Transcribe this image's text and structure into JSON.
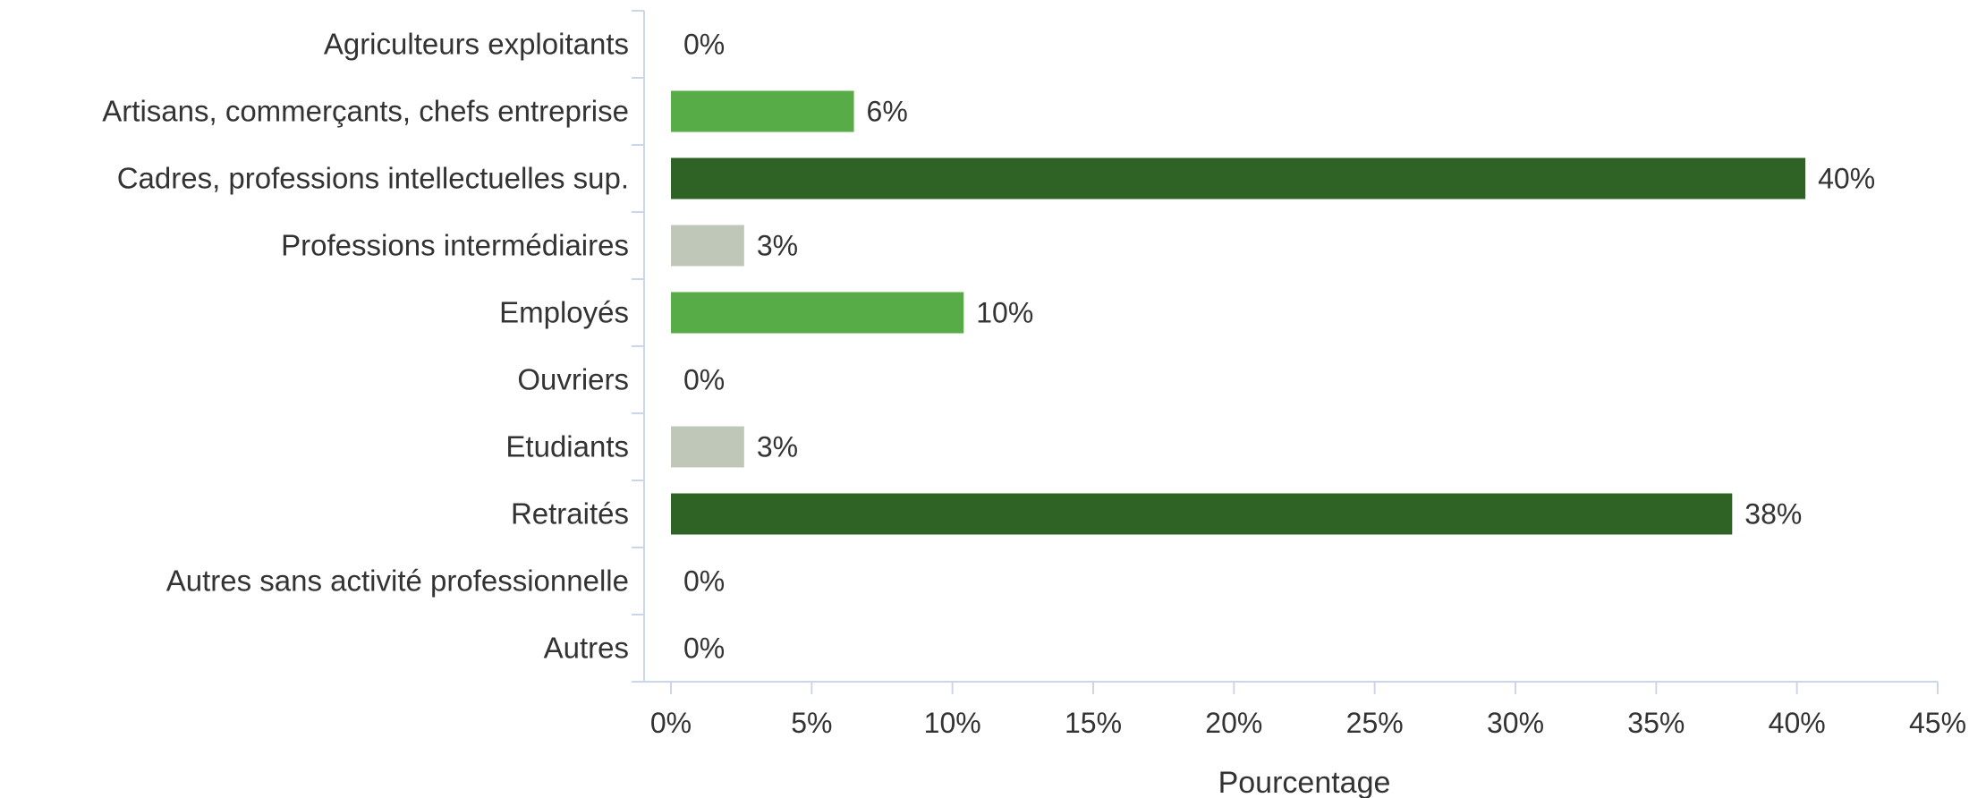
{
  "chart_data": {
    "type": "bar",
    "orientation": "horizontal",
    "title": "",
    "xlabel": "Pourcentage",
    "ylabel": "",
    "xlim": [
      0,
      45
    ],
    "x_ticks": [
      0,
      5,
      10,
      15,
      20,
      25,
      30,
      35,
      40,
      45
    ],
    "x_tick_labels": [
      "0%",
      "5%",
      "10%",
      "15%",
      "20%",
      "25%",
      "30%",
      "35%",
      "40%",
      "45%"
    ],
    "grid": false,
    "legend": "none",
    "categories": [
      "Agriculteurs exploitants",
      "Artisans, commerçants, chefs entreprise",
      "Cadres, professions intellectuelles sup.",
      "Professions intermédiaires",
      "Employés",
      "Ouvriers",
      "Etudiants",
      "Retraités",
      "Autres sans activité professionnelle",
      "Autres"
    ],
    "values": [
      0,
      6.5,
      40.3,
      2.6,
      10.4,
      0,
      2.6,
      37.7,
      0,
      0
    ],
    "data_labels": [
      "0%",
      "6%",
      "40%",
      "3%",
      "10%",
      "0%",
      "3%",
      "38%",
      "0%",
      "0%"
    ],
    "bar_colors": [
      "#57ac47",
      "#57ac47",
      "#2f6326",
      "#bfc8b8",
      "#57ac47",
      "#57ac47",
      "#bfc8b8",
      "#2f6326",
      "#57ac47",
      "#57ac47"
    ],
    "axis_color": "#ccd6eb",
    "text_color": "#333333"
  }
}
